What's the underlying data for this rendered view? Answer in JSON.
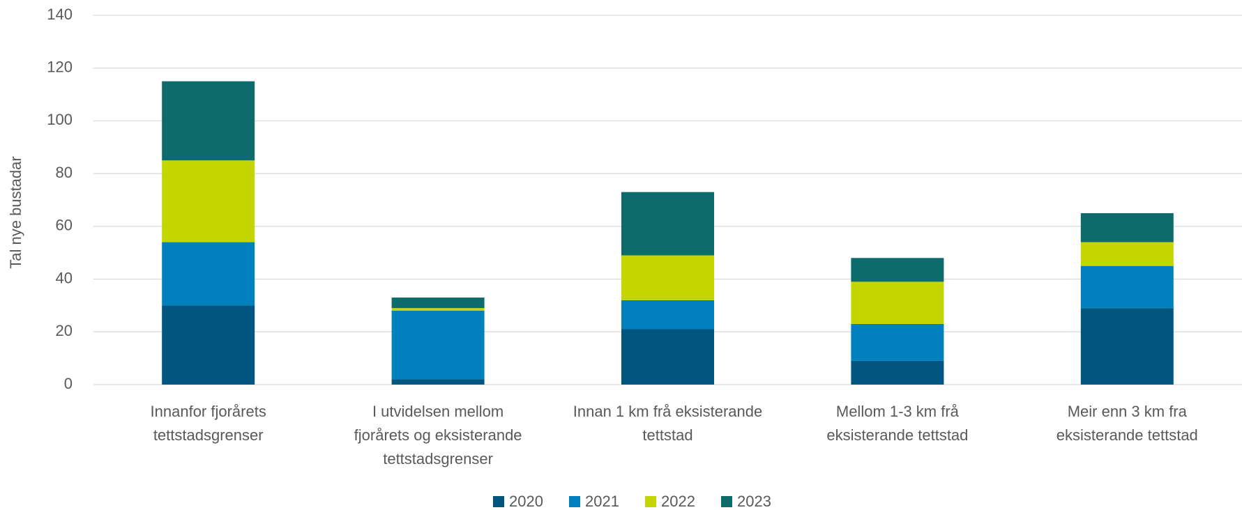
{
  "chart_data": {
    "type": "bar",
    "stacked": true,
    "y_label": "Tal nye bustadar",
    "categories": [
      [
        "Innanfor fjorårets",
        "tettstadsgrenser"
      ],
      [
        "I utvidelsen mellom",
        "fjorårets og eksisterande",
        "tettstadsgrenser"
      ],
      [
        "Innan 1 km frå eksisterande",
        "tettstad"
      ],
      [
        "Mellom 1-3 km frå",
        "eksisterande tettstad"
      ],
      [
        "Meir enn 3 km fra",
        "eksisterande tettstad"
      ]
    ],
    "series": [
      {
        "name": "2020",
        "color": "#00567f",
        "values": [
          30,
          2,
          21,
          9,
          29
        ]
      },
      {
        "name": "2021",
        "color": "#0080bd",
        "values": [
          24,
          26,
          11,
          14,
          16
        ]
      },
      {
        "name": "2022",
        "color": "#c4d600",
        "values": [
          31,
          1,
          17,
          16,
          9
        ]
      },
      {
        "name": "2023",
        "color": "#0e6b6b",
        "values": [
          30,
          4,
          24,
          9,
          11
        ]
      }
    ],
    "ylim": [
      0,
      140
    ],
    "yticks": [
      0,
      20,
      40,
      60,
      80,
      100,
      120,
      140
    ],
    "grid": true,
    "legend": "bottom"
  }
}
